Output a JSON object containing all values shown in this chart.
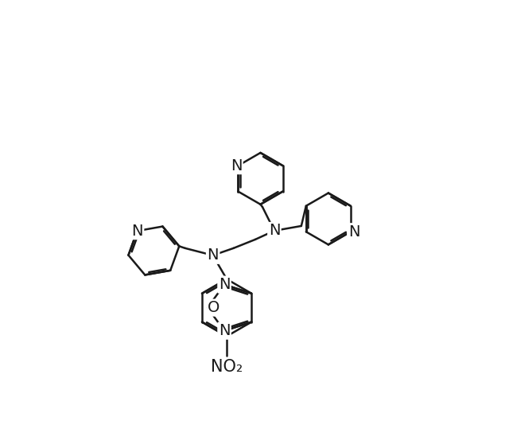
{
  "bg": "#ffffff",
  "lc": "#1a1a1a",
  "lw": 1.8,
  "fs": 14,
  "xlim": [
    -2.5,
    9.5
  ],
  "ylim": [
    -2.0,
    8.5
  ]
}
